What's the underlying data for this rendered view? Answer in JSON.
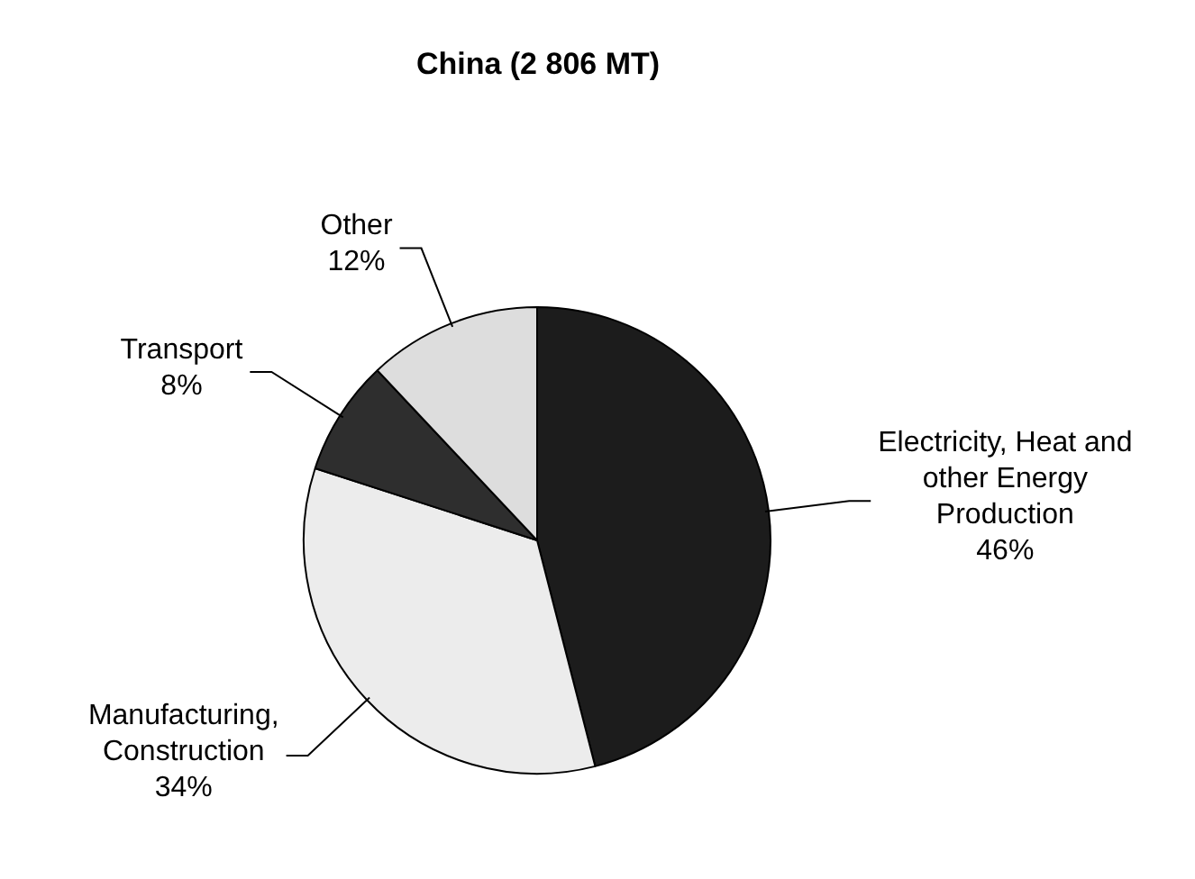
{
  "chart_data": {
    "type": "pie",
    "title": "China (2 806 MT)",
    "categories": [
      "Electricity, Heat and other Energy Production",
      "Manufacturing, Construction",
      "Transport",
      "Other"
    ],
    "values": [
      46,
      34,
      8,
      12
    ],
    "value_labels": [
      "46%",
      "34%",
      "8%",
      "12%"
    ],
    "colors": [
      "#1c1c1c",
      "#ececec",
      "#2e2e2e",
      "#dddddd"
    ],
    "legend": false
  }
}
